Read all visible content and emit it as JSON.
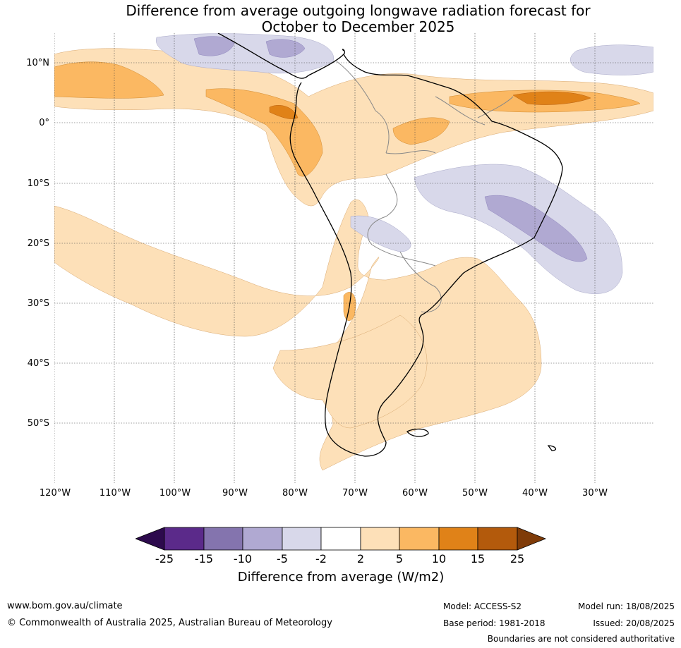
{
  "title": {
    "line1": "Difference from average outgoing longwave radiation forecast for",
    "line2": "October to December 2025"
  },
  "map": {
    "lat_labels": [
      "10°N",
      "0°",
      "10°S",
      "20°S",
      "30°S",
      "40°S",
      "50°S"
    ],
    "lon_labels": [
      "120°W",
      "110°W",
      "100°W",
      "90°W",
      "80°W",
      "70°W",
      "60°W",
      "50°W",
      "40°W",
      "30°W"
    ],
    "colors": {
      "purple_light": "#d8d8ea",
      "purple_mid": "#b0a9d2",
      "orange_light": "#fde0b8",
      "orange_mid": "#fbb862",
      "orange_dark": "#e08218",
      "land_outline": "#000000",
      "border": "#888888"
    }
  },
  "colorbar": {
    "ticks": [
      "-25",
      "-15",
      "-10",
      "-5",
      "-2",
      "2",
      "5",
      "10",
      "15",
      "25"
    ],
    "colors": [
      "#2d0a4d",
      "#5b2a8a",
      "#8474ae",
      "#b0a9d2",
      "#d8d8ea",
      "#ffffff",
      "#fde0b8",
      "#fbb862",
      "#e08218",
      "#b35a0c",
      "#7f3b08"
    ],
    "label": "Difference from average (W/m2)"
  },
  "footer": {
    "website": "www.bom.gov.au/climate",
    "copyright": "© Commonwealth of Australia 2025, Australian Bureau of Meteorology",
    "model": "Model: ACCESS-S2",
    "base_period": "Base period: 1981-2018",
    "model_run": "Model run: 18/08/2025",
    "issued": "Issued: 20/08/2025",
    "disclaimer": "Boundaries are not considered authoritative"
  }
}
